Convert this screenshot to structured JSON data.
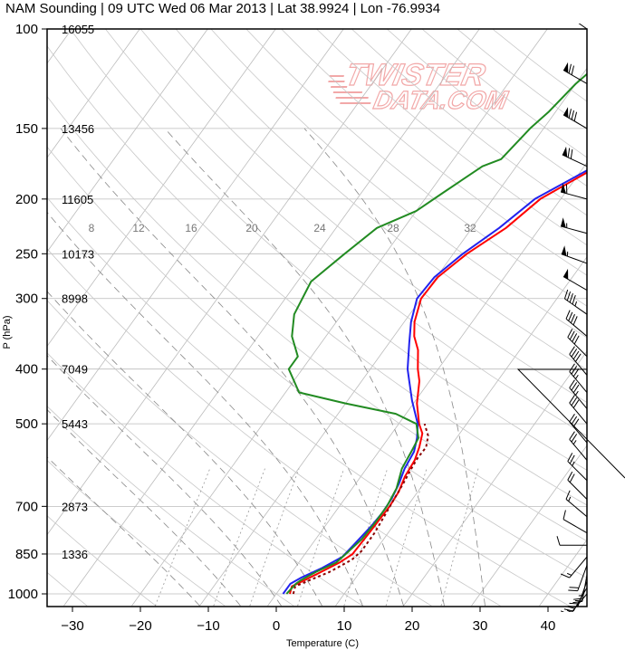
{
  "chart_data": {
    "type": "line",
    "title": "NAM Sounding | 09 UTC Wed 06 Mar 2013 | Lat 38.9924 | Lon -76.9934",
    "xlabel": "Temperature (C)",
    "ylabel": "P (hPa)",
    "xlim": [
      -35,
      48
    ],
    "ylim": [
      1050,
      100
    ],
    "y_scale": "log",
    "x_ticks": [
      "−30",
      "−20",
      "−10",
      "0",
      "10",
      "20",
      "30",
      "40"
    ],
    "x_tick_values": [
      -30,
      -20,
      -10,
      0,
      10,
      20,
      30,
      40
    ],
    "y_ticks": [
      "100",
      "150",
      "200",
      "250",
      "300",
      "400",
      "500",
      "700",
      "850",
      "1000"
    ],
    "y_tick_values": [
      100,
      150,
      200,
      250,
      300,
      400,
      500,
      700,
      850,
      1000
    ],
    "heights": [
      {
        "p": 100,
        "label": "16055"
      },
      {
        "p": 150,
        "label": "13456"
      },
      {
        "p": 200,
        "label": "11605"
      },
      {
        "p": 250,
        "label": "10173"
      },
      {
        "p": 300,
        "label": "8998"
      },
      {
        "p": 400,
        "label": "7049"
      },
      {
        "p": 500,
        "label": "5443"
      },
      {
        "p": 700,
        "label": "2873"
      },
      {
        "p": 850,
        "label": "1336"
      }
    ],
    "mixing_ratio_labels": [
      "8",
      "12",
      "16",
      "20",
      "24",
      "28",
      "32"
    ],
    "series": [
      {
        "color": "#ff0000",
        "points": [
          [
            2,
            1000
          ],
          [
            1.5,
            970
          ],
          [
            2.5,
            950
          ],
          [
            4,
            920
          ],
          [
            6,
            880
          ],
          [
            7,
            850
          ],
          [
            7.2,
            780
          ],
          [
            7.4,
            700
          ],
          [
            7.2,
            660
          ],
          [
            6.5,
            620
          ],
          [
            6.2,
            580
          ],
          [
            5.5,
            550
          ],
          [
            4.5,
            520
          ],
          [
            3,
            500
          ],
          [
            0.5,
            460
          ],
          [
            -1.5,
            420
          ],
          [
            -3,
            400
          ],
          [
            -5,
            370
          ],
          [
            -7,
            350
          ],
          [
            -8.5,
            330
          ],
          [
            -10,
            300
          ],
          [
            -9.8,
            275
          ],
          [
            -8,
            250
          ],
          [
            -5,
            225
          ],
          [
            -3,
            200
          ],
          [
            2,
            175
          ],
          [
            7,
            155
          ],
          [
            10,
            145
          ],
          [
            13.5,
            125
          ],
          [
            16,
            115
          ],
          [
            18.5,
            100
          ]
        ]
      },
      {
        "color": "#2222ee",
        "points": [
          [
            1,
            1000
          ],
          [
            1,
            960
          ],
          [
            2,
            935
          ],
          [
            4,
            900
          ],
          [
            5.8,
            860
          ],
          [
            6.2,
            820
          ],
          [
            6.8,
            760
          ],
          [
            7,
            720
          ],
          [
            6.9,
            680
          ],
          [
            6.4,
            640
          ],
          [
            5.6,
            600
          ],
          [
            5.2,
            560
          ],
          [
            4.2,
            530
          ],
          [
            2.8,
            500
          ],
          [
            -0.5,
            455
          ],
          [
            -3,
            420
          ],
          [
            -4.5,
            400
          ],
          [
            -7,
            360
          ],
          [
            -9,
            330
          ],
          [
            -10.6,
            300
          ],
          [
            -10.3,
            275
          ],
          [
            -8.6,
            250
          ],
          [
            -6,
            225
          ],
          [
            -3.8,
            200
          ],
          [
            1.5,
            175
          ],
          [
            6.5,
            155
          ],
          [
            9,
            145
          ],
          [
            12.5,
            125
          ],
          [
            15,
            115
          ],
          [
            17.5,
            100
          ]
        ]
      },
      {
        "color": "#8b0000",
        "dash": "3,3",
        "points": [
          [
            2.5,
            1000
          ],
          [
            2,
            970
          ],
          [
            3.5,
            945
          ],
          [
            5.5,
            915
          ],
          [
            7.5,
            870
          ],
          [
            8,
            840
          ],
          [
            8,
            780
          ],
          [
            7.6,
            720
          ],
          [
            7.3,
            680
          ],
          [
            7,
            640
          ],
          [
            6.6,
            600
          ],
          [
            6.4,
            575
          ],
          [
            6.5,
            550
          ],
          [
            5.6,
            525
          ],
          [
            3.8,
            500
          ]
        ]
      },
      {
        "color": "#228b22",
        "points": [
          [
            1.5,
            1000
          ],
          [
            1.8,
            960
          ],
          [
            2.2,
            945
          ],
          [
            3.5,
            915
          ],
          [
            5.5,
            880
          ],
          [
            6,
            850
          ],
          [
            6.8,
            800
          ],
          [
            7,
            750
          ],
          [
            7,
            700
          ],
          [
            6.5,
            650
          ],
          [
            5.2,
            600
          ],
          [
            4.8,
            560
          ],
          [
            4.4,
            530
          ],
          [
            2.6,
            500
          ],
          [
            -1.5,
            480
          ],
          [
            -10,
            460
          ],
          [
            -18,
            440
          ],
          [
            -22,
            400
          ],
          [
            -22,
            380
          ],
          [
            -25,
            350
          ],
          [
            -27,
            320
          ],
          [
            -28,
            280
          ],
          [
            -26,
            250
          ],
          [
            -24,
            225
          ],
          [
            -20,
            210
          ],
          [
            -18,
            195
          ],
          [
            -15,
            175
          ],
          [
            -13,
            170
          ],
          [
            -12,
            150
          ],
          [
            -11,
            140
          ],
          [
            -10,
            125
          ],
          [
            -8,
            110
          ],
          [
            -6,
            100
          ]
        ]
      }
    ],
    "wind_barbs": [
      {
        "p": 100,
        "dir": 305,
        "spd": 55
      },
      {
        "p": 125,
        "dir": 300,
        "spd": 70
      },
      {
        "p": 150,
        "dir": 300,
        "spd": 80
      },
      {
        "p": 175,
        "dir": 295,
        "spd": 70
      },
      {
        "p": 200,
        "dir": 285,
        "spd": 60
      },
      {
        "p": 230,
        "dir": 285,
        "spd": 55
      },
      {
        "p": 260,
        "dir": 290,
        "spd": 55
      },
      {
        "p": 290,
        "dir": 300,
        "spd": 50
      },
      {
        "p": 320,
        "dir": 305,
        "spd": 45
      },
      {
        "p": 350,
        "dir": 310,
        "spd": 40
      },
      {
        "p": 380,
        "dir": 315,
        "spd": 40
      },
      {
        "p": 410,
        "dir": 320,
        "spd": 40
      },
      {
        "p": 440,
        "dir": 320,
        "spd": 35
      },
      {
        "p": 470,
        "dir": 320,
        "spd": 35
      },
      {
        "p": 500,
        "dir": 320,
        "spd": 30
      },
      {
        "p": 540,
        "dir": 320,
        "spd": 30
      },
      {
        "p": 580,
        "dir": 320,
        "spd": 25
      },
      {
        "p": 630,
        "dir": 315,
        "spd": 25
      },
      {
        "p": 680,
        "dir": 315,
        "spd": 20
      },
      {
        "p": 730,
        "dir": 310,
        "spd": 15
      },
      {
        "p": 780,
        "dir": 300,
        "spd": 10
      },
      {
        "p": 820,
        "dir": 270,
        "spd": 10
      },
      {
        "p": 860,
        "dir": 220,
        "spd": 15
      },
      {
        "p": 890,
        "dir": 200,
        "spd": 20
      },
      {
        "p": 925,
        "dir": 190,
        "spd": 25
      },
      {
        "p": 950,
        "dir": 200,
        "spd": 25
      },
      {
        "p": 975,
        "dir": 210,
        "spd": 20
      },
      {
        "p": 1000,
        "dir": 220,
        "spd": 15
      }
    ],
    "watermark": [
      "TWISTER",
      "DATA.COM"
    ],
    "grid": true
  }
}
